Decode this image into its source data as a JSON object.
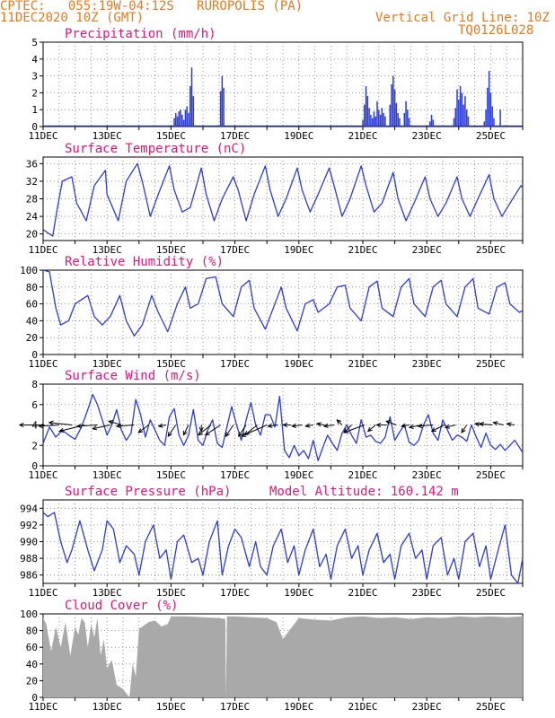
{
  "header": {
    "line1": "CPTEC:   055:19W-04:12S   RUROPOLIS (PA)",
    "line2": "11DEC2020 10Z (GMT)",
    "grid_note": "Vertical Grid Line: 10Z",
    "code": "TQ0126L028",
    "altitude": "Model Altitude: 160.142 m"
  },
  "colors": {
    "header": "#e07a1f",
    "title": "#e0147a",
    "series": "#2b3bd6",
    "bars": "#2b3bd6",
    "arrows": "#000000",
    "cloud": "#a9a9a9",
    "grid": "#7a7a7a"
  },
  "x_axis": {
    "ticks": [
      "11DEC",
      "13DEC",
      "15DEC",
      "17DEC",
      "19DEC",
      "21DEC",
      "23DEC",
      "25DEC"
    ],
    "days": [
      11,
      26
    ]
  },
  "chart_data": [
    {
      "type": "bar",
      "title": "Precipitation (mm/h)",
      "ylim": [
        0,
        5
      ],
      "yticks": [
        0,
        1,
        2,
        3,
        4,
        5
      ],
      "bars": [
        [
          15.1,
          0.5
        ],
        [
          15.15,
          0.8
        ],
        [
          15.2,
          0.6
        ],
        [
          15.25,
          0.9
        ],
        [
          15.3,
          1.0
        ],
        [
          15.35,
          0.7
        ],
        [
          15.4,
          0.4
        ],
        [
          15.45,
          1.0
        ],
        [
          15.5,
          1.2
        ],
        [
          15.55,
          0.8
        ],
        [
          15.6,
          2.4
        ],
        [
          15.65,
          3.5
        ],
        [
          15.7,
          1.8
        ],
        [
          16.55,
          2.1
        ],
        [
          16.6,
          3.0
        ],
        [
          16.65,
          2.3
        ],
        [
          21.0,
          0.4
        ],
        [
          21.05,
          1.3
        ],
        [
          21.1,
          2.4
        ],
        [
          21.15,
          1.8
        ],
        [
          21.2,
          1.1
        ],
        [
          21.25,
          0.7
        ],
        [
          21.3,
          0.5
        ],
        [
          21.35,
          0.9
        ],
        [
          21.4,
          0.6
        ],
        [
          21.45,
          1.5
        ],
        [
          21.5,
          1.0
        ],
        [
          21.55,
          0.7
        ],
        [
          21.6,
          1.1
        ],
        [
          21.65,
          0.8
        ],
        [
          21.7,
          0.6
        ],
        [
          21.85,
          1.3
        ],
        [
          21.9,
          2.5
        ],
        [
          21.95,
          3.0
        ],
        [
          22.0,
          2.2
        ],
        [
          22.05,
          1.4
        ],
        [
          22.1,
          0.8
        ],
        [
          22.15,
          0.5
        ],
        [
          22.3,
          0.8
        ],
        [
          22.35,
          1.5
        ],
        [
          22.4,
          1.0
        ],
        [
          22.45,
          0.5
        ],
        [
          23.1,
          0.3
        ],
        [
          23.15,
          0.7
        ],
        [
          23.2,
          0.4
        ],
        [
          23.85,
          0.5
        ],
        [
          23.9,
          1.1
        ],
        [
          23.95,
          2.2
        ],
        [
          24.0,
          1.6
        ],
        [
          24.05,
          2.4
        ],
        [
          24.1,
          2.0
        ],
        [
          24.15,
          1.3
        ],
        [
          24.2,
          1.8
        ],
        [
          24.25,
          1.0
        ],
        [
          24.3,
          0.6
        ],
        [
          24.8,
          0.3
        ],
        [
          24.85,
          1.0
        ],
        [
          24.9,
          2.3
        ],
        [
          24.95,
          3.3
        ],
        [
          25.0,
          2.0
        ],
        [
          25.05,
          1.2
        ],
        [
          25.1,
          0.5
        ],
        [
          25.3,
          1.0
        ]
      ]
    },
    {
      "type": "line",
      "title": "Surface Temperature (nC)",
      "ylim": [
        18.5,
        37.5
      ],
      "yticks": [
        20,
        24,
        28,
        32,
        36
      ],
      "x": [
        11.0,
        11.3,
        11.45,
        11.6,
        11.9,
        12.05,
        12.35,
        12.6,
        12.95,
        13.0,
        13.35,
        13.6,
        13.95,
        14.1,
        14.35,
        14.6,
        14.95,
        15.1,
        15.35,
        15.6,
        15.95,
        16.1,
        16.35,
        16.6,
        16.95,
        17.1,
        17.35,
        17.6,
        17.95,
        18.1,
        18.35,
        18.6,
        18.95,
        19.1,
        19.35,
        19.6,
        19.95,
        20.1,
        20.35,
        20.6,
        20.95,
        21.1,
        21.35,
        21.6,
        21.95,
        22.1,
        22.35,
        22.6,
        22.95,
        23.1,
        23.35,
        23.6,
        23.95,
        24.1,
        24.35,
        24.6,
        24.95,
        25.1,
        25.35,
        25.6,
        25.95,
        26.0
      ],
      "y": [
        21.0,
        19.5,
        26.0,
        32.0,
        33.0,
        27.0,
        23.0,
        31.0,
        34.5,
        29.0,
        23.0,
        32.0,
        36.0,
        32.0,
        24.0,
        29.0,
        35.5,
        30.0,
        25.0,
        26.0,
        35.0,
        29.0,
        23.0,
        28.0,
        33.0,
        30.0,
        23.0,
        29.0,
        35.5,
        30.0,
        24.0,
        28.0,
        35.0,
        30.0,
        25.0,
        29.0,
        35.0,
        31.0,
        24.0,
        28.0,
        35.5,
        31.0,
        25.0,
        27.0,
        34.0,
        28.0,
        23.0,
        27.0,
        33.0,
        28.0,
        24.0,
        27.0,
        33.0,
        28.0,
        24.0,
        28.0,
        33.5,
        28.0,
        24.0,
        27.0,
        31.0,
        30.5
      ]
    },
    {
      "type": "line",
      "title": "Relative Humidity (%)",
      "ylim": [
        0,
        100
      ],
      "yticks": [
        0,
        20,
        40,
        60,
        80,
        100
      ],
      "x": [
        11.0,
        11.2,
        11.4,
        11.55,
        11.8,
        12.0,
        12.4,
        12.6,
        12.85,
        13.1,
        13.4,
        13.6,
        13.85,
        14.1,
        14.4,
        14.6,
        14.9,
        15.2,
        15.45,
        15.6,
        15.85,
        16.1,
        16.4,
        16.6,
        16.95,
        17.2,
        17.45,
        17.6,
        17.95,
        18.2,
        18.45,
        18.6,
        18.95,
        19.2,
        19.45,
        19.6,
        19.95,
        20.2,
        20.45,
        20.6,
        20.95,
        21.2,
        21.45,
        21.6,
        21.95,
        22.2,
        22.45,
        22.6,
        22.95,
        23.2,
        23.45,
        23.6,
        23.95,
        24.2,
        24.45,
        24.6,
        24.95,
        25.2,
        25.45,
        25.6,
        25.9,
        26.0
      ],
      "y": [
        100.0,
        98.0,
        55.0,
        35.0,
        40.0,
        60.0,
        70.0,
        45.0,
        35.0,
        45.0,
        70.0,
        40.0,
        22.0,
        35.0,
        70.0,
        50.0,
        27.0,
        60.0,
        80.0,
        55.0,
        60.0,
        90.0,
        92.0,
        60.0,
        45.0,
        80.0,
        88.0,
        55.0,
        30.0,
        55.0,
        80.0,
        55.0,
        28.0,
        60.0,
        65.0,
        50.0,
        60.0,
        80.0,
        82.0,
        55.0,
        40.0,
        80.0,
        87.0,
        55.0,
        45.0,
        80.0,
        90.0,
        60.0,
        45.0,
        80.0,
        88.0,
        60.0,
        45.0,
        80.0,
        90.0,
        55.0,
        48.0,
        80.0,
        85.0,
        60.0,
        50.0,
        52.0
      ]
    },
    {
      "type": "line",
      "title": "Surface Wind (m/s)",
      "ylim": [
        0,
        8
      ],
      "yticks": [
        0,
        2,
        4,
        6,
        8
      ],
      "x": [
        11.0,
        11.2,
        11.4,
        11.6,
        11.8,
        12.0,
        12.2,
        12.4,
        12.55,
        12.7,
        12.85,
        13.0,
        13.15,
        13.3,
        13.45,
        13.6,
        13.75,
        13.9,
        14.05,
        14.2,
        14.35,
        14.5,
        14.65,
        14.8,
        14.95,
        15.1,
        15.25,
        15.4,
        15.55,
        15.7,
        15.85,
        16.0,
        16.15,
        16.3,
        16.45,
        16.6,
        16.75,
        16.9,
        17.05,
        17.2,
        17.35,
        17.5,
        17.65,
        17.8,
        17.95,
        18.1,
        18.25,
        18.4,
        18.55,
        18.7,
        18.85,
        19.0,
        19.15,
        19.3,
        19.45,
        19.6,
        19.75,
        19.9,
        20.05,
        20.2,
        20.35,
        20.5,
        20.65,
        20.8,
        20.95,
        21.1,
        21.25,
        21.4,
        21.55,
        21.7,
        21.85,
        22.0,
        22.15,
        22.3,
        22.45,
        22.6,
        22.75,
        22.9,
        23.05,
        23.2,
        23.35,
        23.5,
        23.65,
        23.8,
        23.95,
        24.1,
        24.25,
        24.4,
        24.55,
        24.7,
        24.85,
        25.0,
        25.15,
        25.3,
        25.45,
        25.6,
        25.75,
        25.9,
        26.0
      ],
      "y": [
        2.2,
        3.8,
        2.8,
        3.5,
        3.0,
        2.6,
        3.8,
        5.5,
        7.0,
        6.0,
        4.5,
        3.0,
        4.0,
        5.5,
        3.5,
        2.5,
        3.2,
        6.5,
        5.0,
        2.8,
        4.5,
        3.5,
        2.5,
        2.0,
        4.8,
        5.6,
        3.0,
        2.0,
        3.0,
        5.5,
        2.5,
        2.0,
        3.5,
        4.5,
        2.2,
        1.8,
        3.8,
        5.8,
        4.0,
        2.5,
        4.5,
        6.2,
        4.0,
        3.0,
        5.0,
        5.0,
        3.8,
        6.8,
        1.5,
        0.8,
        2.0,
        1.0,
        1.5,
        0.7,
        2.5,
        0.5,
        1.8,
        3.0,
        2.2,
        1.5,
        3.2,
        4.0,
        3.0,
        2.2,
        4.5,
        2.8,
        3.0,
        2.4,
        2.2,
        2.8,
        4.8,
        2.5,
        3.3,
        4.0,
        2.3,
        2.0,
        2.5,
        4.0,
        5.0,
        3.2,
        2.5,
        4.5,
        3.5,
        2.5,
        3.0,
        2.8,
        2.4,
        4.0,
        2.8,
        1.8,
        3.2,
        2.0,
        1.6,
        2.1,
        1.5,
        2.0,
        2.5,
        1.8,
        1.3
      ],
      "arrows": [
        [
          11.05,
          -1.0,
          0.0
        ],
        [
          11.5,
          -0.8,
          -0.1
        ],
        [
          11.9,
          -0.9,
          0.2
        ],
        [
          12.3,
          -1.0,
          -0.5
        ],
        [
          12.7,
          -0.8,
          -0.1
        ],
        [
          13.1,
          -0.7,
          -0.3
        ],
        [
          13.45,
          -0.5,
          0.3
        ],
        [
          13.85,
          -0.7,
          -0.1
        ],
        [
          14.3,
          -0.4,
          -0.6
        ],
        [
          14.85,
          -0.3,
          -0.1
        ],
        [
          15.15,
          -0.3,
          -0.9
        ],
        [
          15.55,
          -0.2,
          -0.8
        ],
        [
          15.95,
          0.0,
          -0.5
        ],
        [
          16.25,
          -0.5,
          -0.8
        ],
        [
          16.55,
          -0.6,
          -0.8
        ],
        [
          16.95,
          -0.3,
          -0.9
        ],
        [
          17.35,
          -0.3,
          -0.9
        ],
        [
          17.7,
          -0.5,
          -0.8
        ],
        [
          18.0,
          -1.0,
          -0.9
        ],
        [
          18.35,
          -0.4,
          -0.1
        ],
        [
          18.75,
          -0.3,
          0.0
        ],
        [
          19.1,
          -0.4,
          -0.1
        ],
        [
          19.45,
          -0.3,
          -0.1
        ],
        [
          19.8,
          -0.3,
          0.1
        ],
        [
          20.1,
          -0.4,
          -0.1
        ],
        [
          20.35,
          -0.2,
          0.4
        ],
        [
          20.65,
          -0.3,
          -0.6
        ],
        [
          21.05,
          -0.8,
          -0.6
        ],
        [
          21.4,
          -0.3,
          -0.5
        ],
        [
          21.75,
          -0.4,
          0.0
        ],
        [
          22.05,
          -0.4,
          0.3
        ],
        [
          22.45,
          -0.3,
          -0.1
        ],
        [
          22.85,
          -0.5,
          -0.2
        ],
        [
          23.2,
          -0.6,
          -0.1
        ],
        [
          23.55,
          -0.5,
          -0.5
        ],
        [
          23.9,
          -0.4,
          -0.2
        ],
        [
          24.25,
          -0.2,
          -0.6
        ],
        [
          24.75,
          -0.3,
          0.1
        ],
        [
          25.05,
          -0.5,
          0.1
        ],
        [
          25.4,
          -0.4,
          0.2
        ],
        [
          25.75,
          -0.3,
          0.1
        ]
      ]
    },
    {
      "type": "line",
      "title": "Surface Pressure (hPa)",
      "ylim": [
        985,
        995
      ],
      "yticks": [
        986,
        988,
        990,
        992,
        994
      ],
      "x": [
        11.0,
        11.15,
        11.35,
        11.55,
        11.75,
        11.9,
        12.15,
        12.4,
        12.6,
        12.85,
        13.0,
        13.2,
        13.4,
        13.6,
        13.85,
        14.0,
        14.2,
        14.45,
        14.65,
        14.85,
        15.0,
        15.2,
        15.4,
        15.65,
        15.85,
        16.0,
        16.2,
        16.45,
        16.6,
        16.8,
        17.0,
        17.2,
        17.45,
        17.65,
        17.8,
        18.0,
        18.2,
        18.45,
        18.65,
        18.85,
        19.0,
        19.2,
        19.45,
        19.65,
        19.85,
        20.0,
        20.2,
        20.45,
        20.65,
        20.85,
        21.0,
        21.2,
        21.45,
        21.65,
        21.85,
        22.0,
        22.2,
        22.45,
        22.65,
        22.85,
        23.0,
        23.2,
        23.45,
        23.65,
        23.85,
        24.0,
        24.2,
        24.45,
        24.65,
        24.85,
        25.0,
        25.2,
        25.45,
        25.65,
        25.85,
        26.0
      ],
      "y": [
        993.5,
        993.0,
        993.5,
        990.0,
        987.5,
        989.0,
        992.5,
        989.0,
        986.5,
        989.0,
        992.5,
        991.5,
        987.5,
        989.5,
        988.5,
        986.0,
        990.0,
        992.0,
        988.0,
        989.0,
        985.5,
        990.0,
        990.8,
        987.5,
        988.0,
        986.0,
        990.0,
        992.5,
        986.0,
        989.5,
        991.5,
        990.5,
        987.0,
        990.0,
        987.0,
        986.0,
        989.5,
        991.5,
        987.5,
        989.5,
        986.0,
        989.0,
        991.5,
        987.0,
        988.5,
        985.5,
        989.5,
        991.5,
        988.0,
        989.5,
        986.0,
        989.0,
        991.0,
        987.5,
        988.5,
        985.5,
        989.5,
        991.0,
        988.0,
        989.0,
        985.5,
        989.5,
        990.5,
        986.0,
        988.0,
        985.5,
        990.0,
        991.0,
        987.0,
        989.5,
        985.5,
        988.5,
        992.0,
        986.0,
        985.0,
        988.0
      ]
    },
    {
      "type": "area",
      "title": "Cloud Cover (%)",
      "ylim": [
        0,
        100
      ],
      "yticks": [
        0,
        20,
        40,
        60,
        80,
        100
      ],
      "x": [
        11.0,
        11.1,
        11.25,
        11.4,
        11.55,
        11.7,
        11.85,
        12.0,
        12.1,
        12.2,
        12.3,
        12.4,
        12.5,
        12.6,
        12.7,
        12.8,
        12.9,
        13.0,
        13.15,
        13.3,
        13.5,
        13.7,
        13.8,
        13.9,
        14.0,
        14.3,
        14.5,
        14.7,
        14.9,
        15.0,
        15.5,
        16.0,
        16.5,
        16.7,
        16.72,
        16.75,
        17.0,
        17.5,
        18.0,
        18.3,
        18.5,
        18.7,
        19.0,
        19.5,
        20.0,
        20.5,
        21.0,
        21.5,
        22.0,
        22.5,
        23.0,
        23.5,
        24.0,
        24.5,
        25.0,
        25.5,
        26.0
      ],
      "y": [
        95.0,
        88.0,
        55.0,
        85.0,
        60.0,
        90.0,
        50.0,
        85.0,
        75.0,
        95.0,
        90.0,
        60.0,
        88.0,
        72.0,
        95.0,
        50.0,
        70.0,
        35.0,
        45.0,
        15.0,
        10.0,
        0.0,
        40.0,
        25.0,
        82.0,
        90.0,
        92.0,
        85.0,
        88.0,
        97.0,
        97.0,
        96.0,
        95.0,
        94.0,
        0.0,
        97.0,
        97.0,
        96.0,
        95.0,
        90.0,
        70.0,
        80.0,
        95.0,
        93.0,
        92.0,
        96.0,
        97.0,
        95.0,
        96.0,
        94.0,
        96.0,
        95.0,
        97.0,
        96.0,
        97.0,
        96.0,
        97.0
      ]
    }
  ]
}
